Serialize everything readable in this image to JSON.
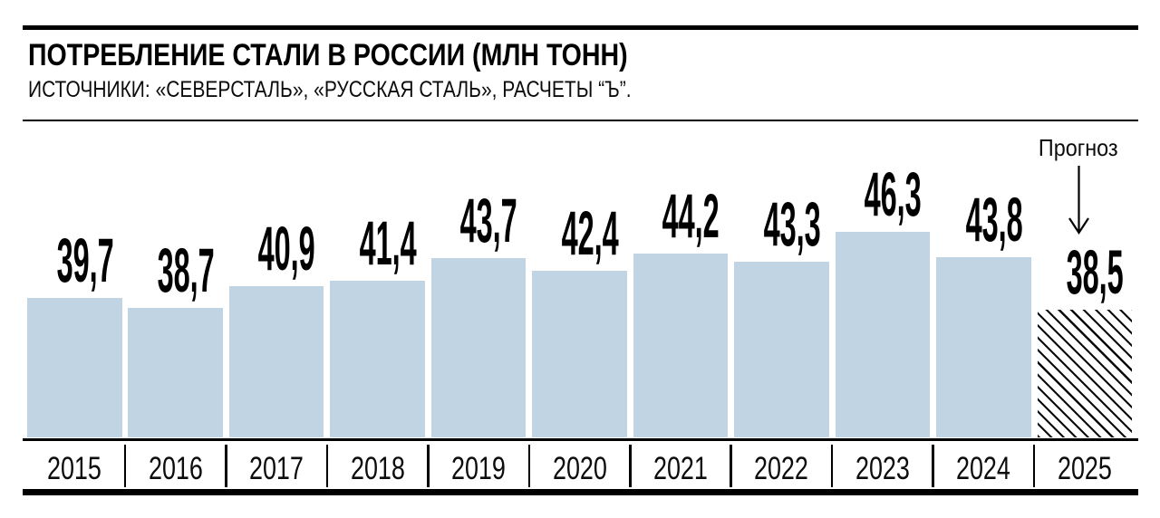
{
  "header": {
    "title": "ПОТРЕБЛЕНИЕ СТАЛИ В РОССИИ (МЛН ТОНН)",
    "sources": "ИСТОЧНИКИ: «СЕВЕРСТАЛЬ», «РУССКАЯ СТАЛЬ», РАСЧЕТЫ “Ъ”."
  },
  "chart_data": {
    "type": "bar",
    "title": "ПОТРЕБЛЕНИЕ СТАЛИ В РОССИИ (МЛН ТОНН)",
    "categories": [
      "2015",
      "2016",
      "2017",
      "2018",
      "2019",
      "2020",
      "2021",
      "2022",
      "2023",
      "2024",
      "2025"
    ],
    "values": [
      39.7,
      38.7,
      40.9,
      41.4,
      43.7,
      42.4,
      44.2,
      43.3,
      46.3,
      43.8,
      38.5
    ],
    "value_labels": [
      "39,7",
      "38,7",
      "40,9",
      "41,4",
      "43,7",
      "42,4",
      "44,2",
      "43,3",
      "46,3",
      "43,8",
      "38,5"
    ],
    "unit": "млн тонн",
    "forecast_label": "Прогноз",
    "forecast_index": 10,
    "bar_color": "#c0d4e3",
    "hatch_color": "#0b0b0b",
    "grid": false,
    "legend": "none",
    "xlabel": "",
    "ylabel": ""
  }
}
